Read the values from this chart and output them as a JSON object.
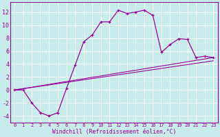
{
  "xlabel": "Windchill (Refroidissement éolien,°C)",
  "background_color": "#c8ecec",
  "grid_color": "#ffffff",
  "line_color": "#990099",
  "xlim": [
    -0.5,
    23.5
  ],
  "ylim": [
    -5.0,
    13.5
  ],
  "xticks": [
    0,
    1,
    2,
    3,
    4,
    5,
    6,
    7,
    8,
    9,
    10,
    11,
    12,
    13,
    14,
    15,
    16,
    17,
    18,
    19,
    20,
    21,
    22,
    23
  ],
  "yticks": [
    -4,
    -2,
    0,
    2,
    4,
    6,
    8,
    10,
    12
  ],
  "series1_x": [
    0,
    1,
    2,
    3,
    4,
    5,
    6,
    7,
    8,
    9,
    10,
    11,
    12,
    13,
    14,
    15,
    16,
    17,
    18,
    19,
    20,
    21,
    22,
    23
  ],
  "series1_y": [
    0.0,
    0.0,
    -2.0,
    -3.5,
    -4.0,
    -3.5,
    0.2,
    3.8,
    7.4,
    8.5,
    10.5,
    10.5,
    12.3,
    11.8,
    12.0,
    12.3,
    11.5,
    5.8,
    7.0,
    7.9,
    7.8,
    5.0,
    5.2,
    5.0
  ],
  "series2_x": [
    0,
    1,
    2,
    3,
    4,
    5,
    6,
    7,
    8,
    9,
    10,
    11,
    12,
    13,
    14,
    15,
    16,
    17,
    18,
    19,
    20,
    21,
    22,
    23
  ],
  "series2_y": [
    0.0,
    0.22,
    0.43,
    0.65,
    0.87,
    1.09,
    1.3,
    1.52,
    1.74,
    1.96,
    2.17,
    2.39,
    2.61,
    2.83,
    3.04,
    3.26,
    3.48,
    3.7,
    3.91,
    4.13,
    4.35,
    4.57,
    4.78,
    5.0
  ],
  "series3_x": [
    0,
    1,
    2,
    3,
    4,
    5,
    6,
    7,
    8,
    9,
    10,
    11,
    12,
    13,
    14,
    15,
    16,
    17,
    18,
    19,
    20,
    21,
    22,
    23
  ],
  "series3_y": [
    0.0,
    0.2,
    0.39,
    0.59,
    0.78,
    0.98,
    1.17,
    1.37,
    1.57,
    1.76,
    1.96,
    2.15,
    2.35,
    2.54,
    2.74,
    2.93,
    3.13,
    3.33,
    3.52,
    3.72,
    3.91,
    4.11,
    4.3,
    4.5
  ],
  "tick_fontsize_x": 5.0,
  "tick_fontsize_y": 6.0,
  "xlabel_fontsize": 5.8
}
